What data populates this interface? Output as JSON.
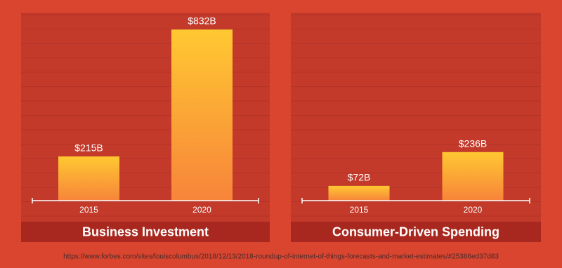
{
  "chart_data": [
    {
      "type": "bar",
      "title": "Business Investment",
      "categories": [
        "2015",
        "2020"
      ],
      "values": [
        215,
        832
      ],
      "value_labels": [
        "$215B",
        "$832B"
      ],
      "gradient": [
        "#ffc832",
        "#f7843a"
      ]
    },
    {
      "type": "bar",
      "title": "Consumer-Driven Spending",
      "categories": [
        "2015",
        "2020"
      ],
      "values": [
        72,
        236
      ],
      "value_labels": [
        "$72B",
        "$236B"
      ],
      "gradient": [
        "#ffc832",
        "#f7843a"
      ]
    }
  ],
  "source": "https://www.forbes.com/sites/louiscolumbus/2018/12/13/2018-roundup-of-internet-of-things-forecasts-and-market-estimates/#25386ed37d83"
}
